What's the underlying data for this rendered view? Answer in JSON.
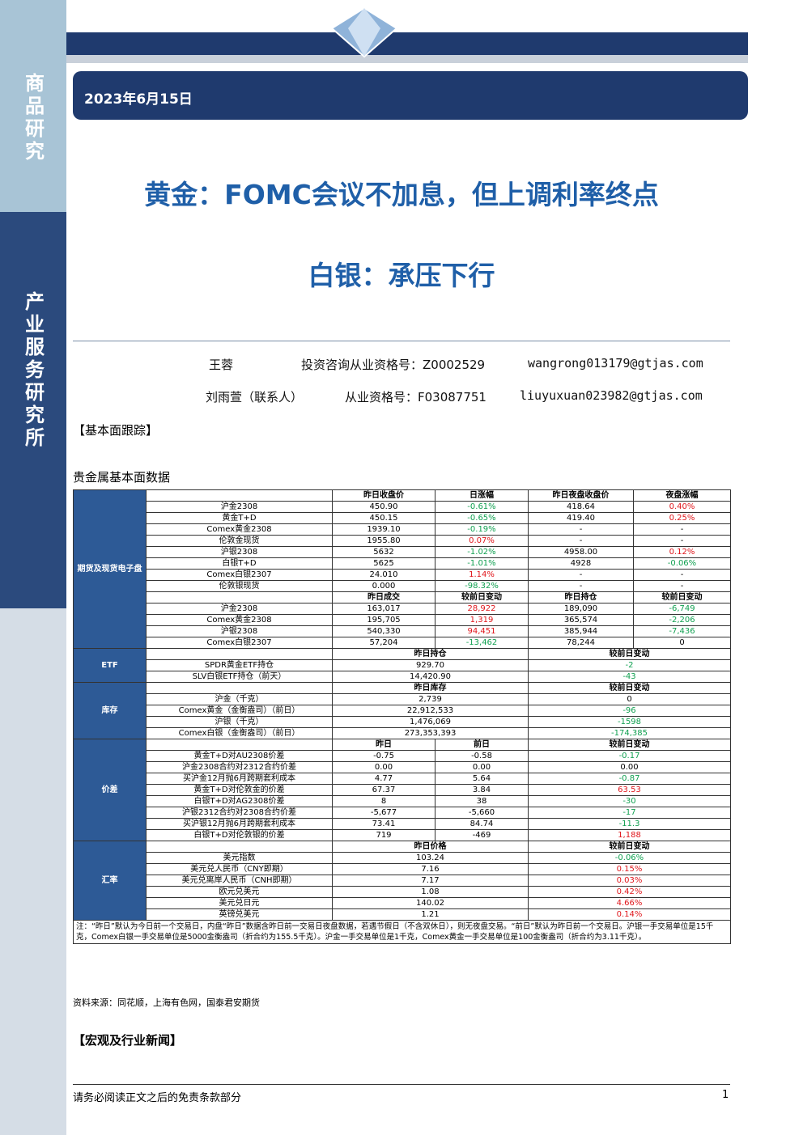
{
  "sidebar": {
    "top": "商品研究",
    "bottom": "产业服务研究所"
  },
  "header": {
    "date": "2023年6月15日"
  },
  "title": {
    "line1": "黄金：FOMC会议不加息，但上调利率终点",
    "line2": "白银：承压下行"
  },
  "authors": [
    {
      "name": "王蓉",
      "cert": "投资咨询从业资格号：Z0002529",
      "email": "wangrong013179@gtjas.com"
    },
    {
      "name": "刘雨萱（联系人）",
      "cert": "从业资格号：F03087751",
      "email": "liuyuxuan023982@gtjas.com"
    }
  ],
  "section1": "【基本面跟踪】",
  "table_title": "贵金属基本面数据",
  "table": {
    "groups": [
      {
        "label": "期货及现货电子盘",
        "rows": [
          {
            "head": [
              "昨日收盘价",
              "日涨幅",
              "昨日夜盘收盘价",
              "夜盘涨幅"
            ]
          },
          {
            "item": "沪金2308",
            "cells": [
              "450.90",
              {
                "text": "-0.61%",
                "tone": "down"
              },
              "418.64",
              {
                "text": "0.40%",
                "tone": "up"
              }
            ]
          },
          {
            "item": "黄金T+D",
            "cells": [
              "450.15",
              {
                "text": "-0.65%",
                "tone": "down"
              },
              "419.40",
              {
                "text": "0.25%",
                "tone": "up"
              }
            ]
          },
          {
            "item": "Comex黄金2308",
            "cells": [
              "1939.10",
              {
                "text": "-0.19%",
                "tone": "down"
              },
              "-",
              "-"
            ]
          },
          {
            "item": "伦敦金现货",
            "cells": [
              "1955.80",
              {
                "text": "0.07%",
                "tone": "up"
              },
              "-",
              "-"
            ]
          },
          {
            "item": "沪银2308",
            "cells": [
              "5632",
              {
                "text": "-1.02%",
                "tone": "down"
              },
              "4958.00",
              {
                "text": "0.12%",
                "tone": "up"
              }
            ]
          },
          {
            "item": "白银T+D",
            "cells": [
              "5625",
              {
                "text": "-1.01%",
                "tone": "down"
              },
              "4928",
              {
                "text": "-0.06%",
                "tone": "down"
              }
            ]
          },
          {
            "item": "Comex白银2307",
            "cells": [
              "24.010",
              {
                "text": "1.14%",
                "tone": "up"
              },
              "-",
              "-"
            ]
          },
          {
            "item": "伦敦银现货",
            "cells": [
              "0.000",
              {
                "text": "-98.32%",
                "tone": "down"
              },
              "-",
              "-"
            ]
          },
          {
            "head": [
              "昨日成交",
              "较前日变动",
              "昨日持仓",
              "较前日变动"
            ]
          },
          {
            "item": "沪金2308",
            "cells": [
              "163,017",
              {
                "text": "28,922",
                "tone": "up"
              },
              "189,090",
              {
                "text": "-6,749",
                "tone": "down"
              }
            ]
          },
          {
            "item": "Comex黄金2308",
            "cells": [
              "195,705",
              {
                "text": "1,319",
                "tone": "up"
              },
              "365,574",
              {
                "text": "-2,206",
                "tone": "down"
              }
            ]
          },
          {
            "item": "沪银2308",
            "cells": [
              "540,330",
              {
                "text": "94,451",
                "tone": "up"
              },
              "385,944",
              {
                "text": "-7,436",
                "tone": "down"
              }
            ]
          },
          {
            "item": "Comex白银2307",
            "cells": [
              "57,204",
              {
                "text": "-13,462",
                "tone": "down"
              },
              "78,244",
              "0"
            ]
          }
        ]
      },
      {
        "label": "ETF",
        "rows": [
          {
            "head": [
              "昨日持仓",
              "较前日变动"
            ]
          },
          {
            "item": "SPDR黄金ETF持仓",
            "cells": [
              "929.70",
              {
                "text": "-2",
                "tone": "down"
              }
            ]
          },
          {
            "item": "SLV白银ETF持仓（前天）",
            "cells": [
              "14,420.90",
              {
                "text": "-43",
                "tone": "down"
              }
            ]
          }
        ]
      },
      {
        "label": "库存",
        "rows": [
          {
            "head": [
              "昨日库存",
              "较前日变动"
            ]
          },
          {
            "item": "沪金（千克）",
            "cells": [
              "2,739",
              "0"
            ]
          },
          {
            "item": "Comex黄金（金衡盎司）（前日）",
            "cells": [
              "22,912,533",
              {
                "text": "-96",
                "tone": "down"
              }
            ]
          },
          {
            "item": "沪银（千克）",
            "cells": [
              "1,476,069",
              {
                "text": "-1598",
                "tone": "down"
              }
            ]
          },
          {
            "item": "Comex白银（金衡盎司）（前日）",
            "cells": [
              "273,353,393",
              {
                "text": "-174,385",
                "tone": "down"
              }
            ]
          }
        ]
      },
      {
        "label": "价差",
        "rows": [
          {
            "head": [
              "昨日",
              "前日",
              "较前日变动"
            ]
          },
          {
            "item": "黄金T+D对AU2308价差",
            "cells": [
              "-0.75",
              "-0.58",
              {
                "text": "-0.17",
                "tone": "down"
              }
            ]
          },
          {
            "item": "沪金2308合约对2312合约价差",
            "cells": [
              "0.00",
              "0.00",
              "0.00"
            ]
          },
          {
            "item": "买沪金12月抛6月跨期套利成本",
            "cells": [
              "4.77",
              "5.64",
              {
                "text": "-0.87",
                "tone": "down"
              }
            ]
          },
          {
            "item": "黄金T+D对伦敦金的价差",
            "cells": [
              "67.37",
              "3.84",
              {
                "text": "63.53",
                "tone": "up"
              }
            ]
          },
          {
            "item": "白银T+D对AG2308价差",
            "cells": [
              "8",
              "38",
              {
                "text": "-30",
                "tone": "down"
              }
            ]
          },
          {
            "item": "沪银2312合约对2308合约价差",
            "cells": [
              "-5,677",
              "-5,660",
              {
                "text": "-17",
                "tone": "down"
              }
            ]
          },
          {
            "item": "买沪银12月抛6月跨期套利成本",
            "cells": [
              "73.41",
              "84.74",
              {
                "text": "-11.3",
                "tone": "down"
              }
            ]
          },
          {
            "item": "白银T+D对伦敦银的价差",
            "cells": [
              "719",
              "-469",
              {
                "text": "1,188",
                "tone": "up"
              }
            ]
          }
        ]
      },
      {
        "label": "汇率",
        "rows": [
          {
            "head": [
              "昨日价格",
              "较前日变动"
            ]
          },
          {
            "item": "美元指数",
            "cells": [
              "103.24",
              {
                "text": "-0.06%",
                "tone": "down"
              }
            ]
          },
          {
            "item": "美元兑人民币（CNY即期）",
            "cells": [
              "7.16",
              {
                "text": "0.15%",
                "tone": "up"
              }
            ]
          },
          {
            "item": "美元兑离岸人民币（CNH即期）",
            "cells": [
              "7.17",
              {
                "text": "0.03%",
                "tone": "up"
              }
            ]
          },
          {
            "item": "欧元兑美元",
            "cells": [
              "1.08",
              {
                "text": "0.42%",
                "tone": "up"
              }
            ]
          },
          {
            "item": "美元兑日元",
            "cells": [
              "140.02",
              {
                "text": "4.66%",
                "tone": "up"
              }
            ]
          },
          {
            "item": "英镑兑美元",
            "cells": [
              "1.21",
              {
                "text": "0.14%",
                "tone": "up"
              }
            ]
          }
        ]
      }
    ],
    "note": "注：“昨日”默认为今日前一个交易日，内盘“昨日”数据含昨日前一交易日夜盘数据，若遇节假日（不含双休日），则无夜盘交易。“前日”默认为昨日前一个交易日。沪银一手交易单位是15千克，Comex白银一手交易单位是5000金衡盎司（折合约为155.5千克）。沪金一手交易单位是1千克，Comex黄金一手交易单位是100金衡盎司（折合约为3.11千克）。"
  },
  "source": "资料来源：同花顺，上海有色网，国泰君安期货",
  "section2": "【宏观及行业新闻】",
  "footer": {
    "disclaimer": "请务必阅读正文之后的免责条款部分",
    "page": "1"
  }
}
